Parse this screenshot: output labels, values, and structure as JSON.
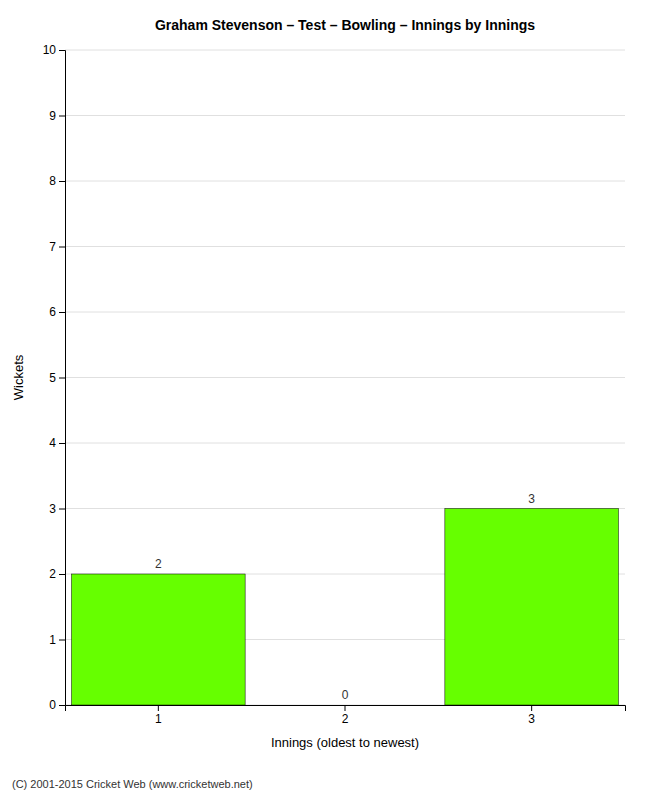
{
  "chart_data": {
    "type": "bar",
    "title": "Graham Stevenson – Test – Bowling – Innings by Innings",
    "xlabel": "Innings (oldest to newest)",
    "ylabel": "Wickets",
    "categories": [
      "1",
      "2",
      "3"
    ],
    "values": [
      2,
      0,
      3
    ],
    "color": "#66ff00",
    "ylim": [
      0,
      10
    ],
    "yticks": [
      0,
      1,
      2,
      3,
      4,
      5,
      6,
      7,
      8,
      9,
      10
    ],
    "grid": true,
    "data_labels": true,
    "annotations": [
      "(C) 2001-2015 Cricket Web (www.cricketweb.net)"
    ]
  }
}
